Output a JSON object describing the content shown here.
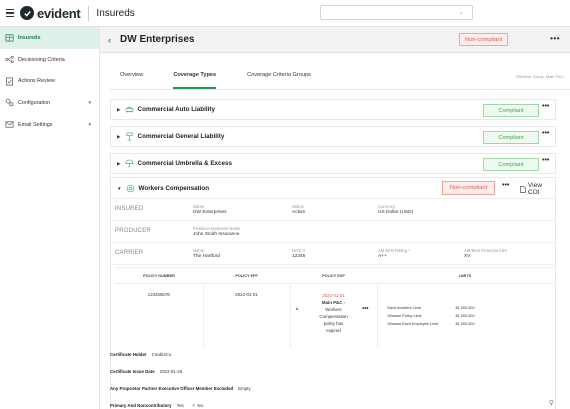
{
  "app": {
    "logo_text": "evident",
    "section_title": "Insureds"
  },
  "sidebar": {
    "items": [
      {
        "label": "Insureds",
        "icon": "building-icon",
        "active": true
      },
      {
        "label": "Decisioning Criteria",
        "icon": "criteria-icon"
      },
      {
        "label": "Actions Review",
        "icon": "checklist-icon"
      },
      {
        "label": "Configuration",
        "icon": "gears-icon",
        "has_chevron": true
      },
      {
        "label": "Email Settings",
        "icon": "email-settings-icon",
        "has_chevron": true
      }
    ]
  },
  "header": {
    "back_glyph": "‹",
    "company": "DW Enterprises",
    "status": "Non-compliant",
    "more": "•••"
  },
  "tabs": [
    {
      "label": "Overview"
    },
    {
      "label": "Coverage Types",
      "active": true
    },
    {
      "label": "Coverage Criteria Groups"
    }
  ],
  "effective_group": "Effective Group: Main P&C",
  "coverages": [
    {
      "name": "Commercial Auto Liability",
      "status": "Compliant",
      "icon": "car-icon"
    },
    {
      "name": "Commercial General Liability",
      "status": "Compliant",
      "icon": "general-liability-icon"
    },
    {
      "name": "Commercial Umbrella & Excess",
      "status": "Compliant",
      "icon": "umbrella-icon"
    }
  ],
  "workers_comp": {
    "name": "Workers Compensation",
    "status": "Non-compliant",
    "more": "•••",
    "view_coi": "View COI",
    "insured": {
      "label": "INSURED",
      "name_label": "Name",
      "name": "DW Enterprises",
      "status_label": "Status",
      "status": "Active",
      "currency_label": "Currency",
      "currency": "US Dollar (USD)"
    },
    "producer": {
      "label": "PRODUCER",
      "business_label": "Producer Business Name",
      "business": "John Smith Insurance"
    },
    "carrier": {
      "label": "CARRIER",
      "name_label": "Name",
      "name": "The Hartford",
      "naic_label": "NAIC #",
      "naic": "12345",
      "rating_label": "AM Best Rating *",
      "rating": "A++",
      "size_label": "AM Best Financial Size",
      "size": "XV"
    },
    "policy_table": {
      "headers": [
        "POLICY NUMBER",
        "POLICY EFF",
        "POLICY EXP",
        "LIMITS"
      ],
      "policy_number": "123456678",
      "policy_eff": "2022-01-01",
      "policy_exp": "2022-01-01",
      "exp_note_lines": [
        "Main P&C -",
        "Workers",
        "Compensation",
        "policy has",
        "expired"
      ],
      "limits": [
        {
          "name": "Each Accident Limit",
          "value": "$1,000,000"
        },
        {
          "name": "Disease Policy Limit",
          "value": "$1,000,000"
        },
        {
          "name": "Disease Each Employee Limit",
          "value": "$1,000,000"
        }
      ]
    },
    "details": {
      "certificate_holder_label": "Certificate Holder",
      "certificate_holder": "Credit4Co",
      "issue_date_label": "Certificate Issue Date",
      "issue_date": "2022-01-26",
      "proprietor_label": "Any Proprietor Partner Executive Officer Member Excluded",
      "proprietor": "Empty",
      "primary_label": "Primary And Noncontributory",
      "primary_yes": "Yes",
      "primary_no": "No"
    }
  },
  "colors": {
    "accent_green": "#1f9a5a",
    "compliant_green": "#3bab55",
    "noncompliant_red": "#e15b4b"
  }
}
